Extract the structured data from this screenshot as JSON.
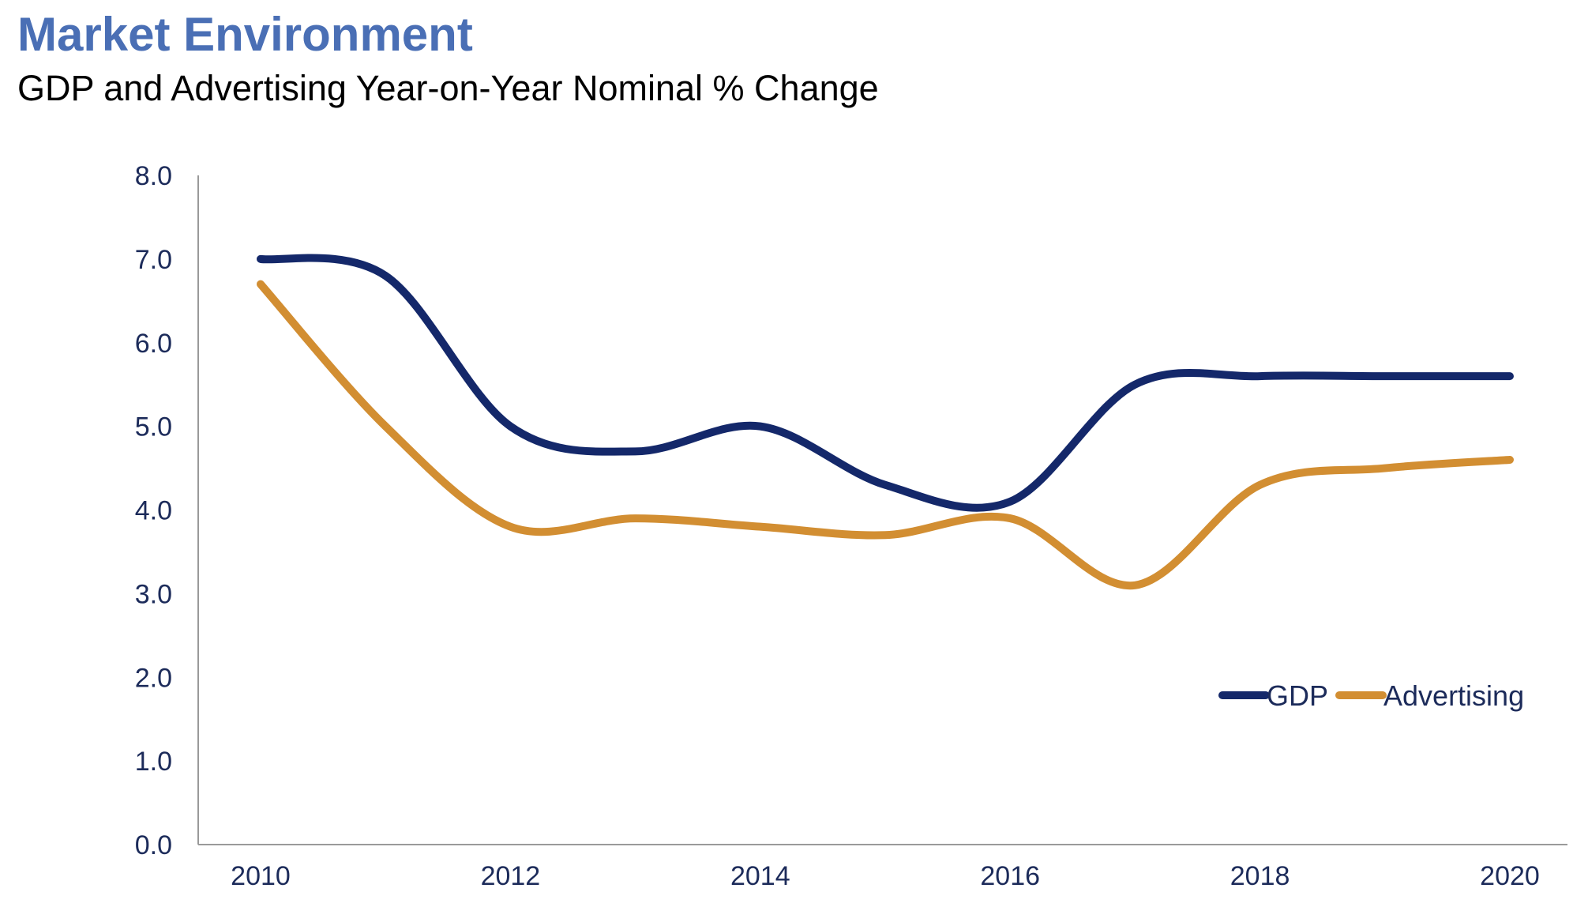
{
  "header": {
    "title": "Market Environment",
    "subtitle": "GDP and Advertising Year-on-Year Nominal % Change"
  },
  "colors": {
    "title": "#4a6fb5",
    "axis": "#9a9a9a",
    "tick_text": "#1c2b5a",
    "gdp": "#14286a",
    "advertising": "#d28e32"
  },
  "chart_data": {
    "type": "line",
    "x": [
      2010,
      2011,
      2012,
      2013,
      2014,
      2015,
      2016,
      2017,
      2018,
      2019,
      2020
    ],
    "series": [
      {
        "name": "GDP",
        "values": [
          7.0,
          6.8,
          5.0,
          4.7,
          5.0,
          4.3,
          4.1,
          5.5,
          5.6,
          5.6,
          5.6
        ]
      },
      {
        "name": "Advertising",
        "values": [
          6.7,
          5.0,
          3.8,
          3.9,
          3.8,
          3.7,
          3.9,
          3.1,
          4.3,
          4.5,
          4.6
        ]
      }
    ],
    "ylim": [
      0,
      8
    ],
    "yticks": [
      "0.0",
      "1.0",
      "2.0",
      "3.0",
      "4.0",
      "5.0",
      "6.0",
      "7.0",
      "8.0"
    ],
    "xticks": [
      "2010",
      "2012",
      "2014",
      "2016",
      "2018",
      "2020"
    ],
    "xlabel": "",
    "ylabel": "",
    "grid": false,
    "legend_position": "bottom-right"
  }
}
